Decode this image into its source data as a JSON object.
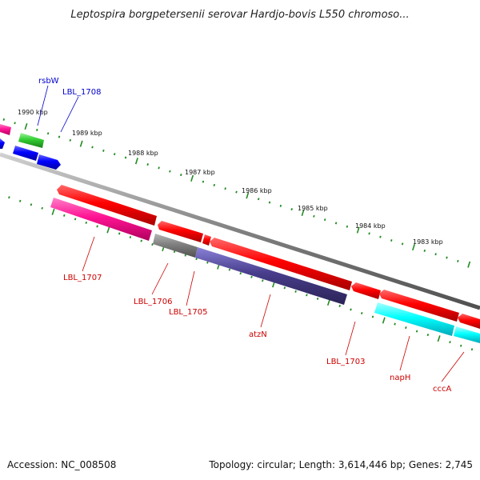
{
  "title": "Leptospira borgpetersenii serovar Hardjo-bovis L550 chromoso...",
  "footer": {
    "accession": "Accession: NC_008508",
    "stats": "Topology: circular; Length: 3,614,446 bp; Genes: 2,745"
  },
  "ticks": [
    "1990 kbp",
    "1989 kbp",
    "1988 kbp",
    "1987 kbp",
    "1986 kbp",
    "1985 kbp",
    "1984 kbp",
    "1983 kbp"
  ],
  "genes": [
    {
      "id": "rsbW",
      "label": "rsbW",
      "strand": "forward",
      "color": "#0000ff"
    },
    {
      "id": "LBL_1708",
      "label": "LBL_1708",
      "strand": "forward",
      "color": "#0000ff"
    },
    {
      "id": "LBL_1707",
      "label": "LBL_1707",
      "strand": "reverse",
      "color": "#ff1493"
    },
    {
      "id": "LBL_1706",
      "label": "LBL_1706",
      "strand": "reverse",
      "color": "#808080"
    },
    {
      "id": "LBL_1705",
      "label": "LBL_1705",
      "strand": "reverse",
      "color": "#483d8b"
    },
    {
      "id": "atzN",
      "label": "atzN",
      "strand": "reverse",
      "color": "#ff0000"
    },
    {
      "id": "LBL_1703",
      "label": "LBL_1703",
      "strand": "reverse",
      "color": "#ff0000"
    },
    {
      "id": "napH",
      "label": "napH",
      "strand": "reverse",
      "color": "#00ffff"
    },
    {
      "id": "cccA",
      "label": "cccA",
      "strand": "reverse",
      "color": "#00ffff"
    }
  ],
  "colors": {
    "forward_label": "#0000cc",
    "reverse_label": "#cc0000",
    "ticks": "#228b22",
    "backbone": "#808080"
  }
}
